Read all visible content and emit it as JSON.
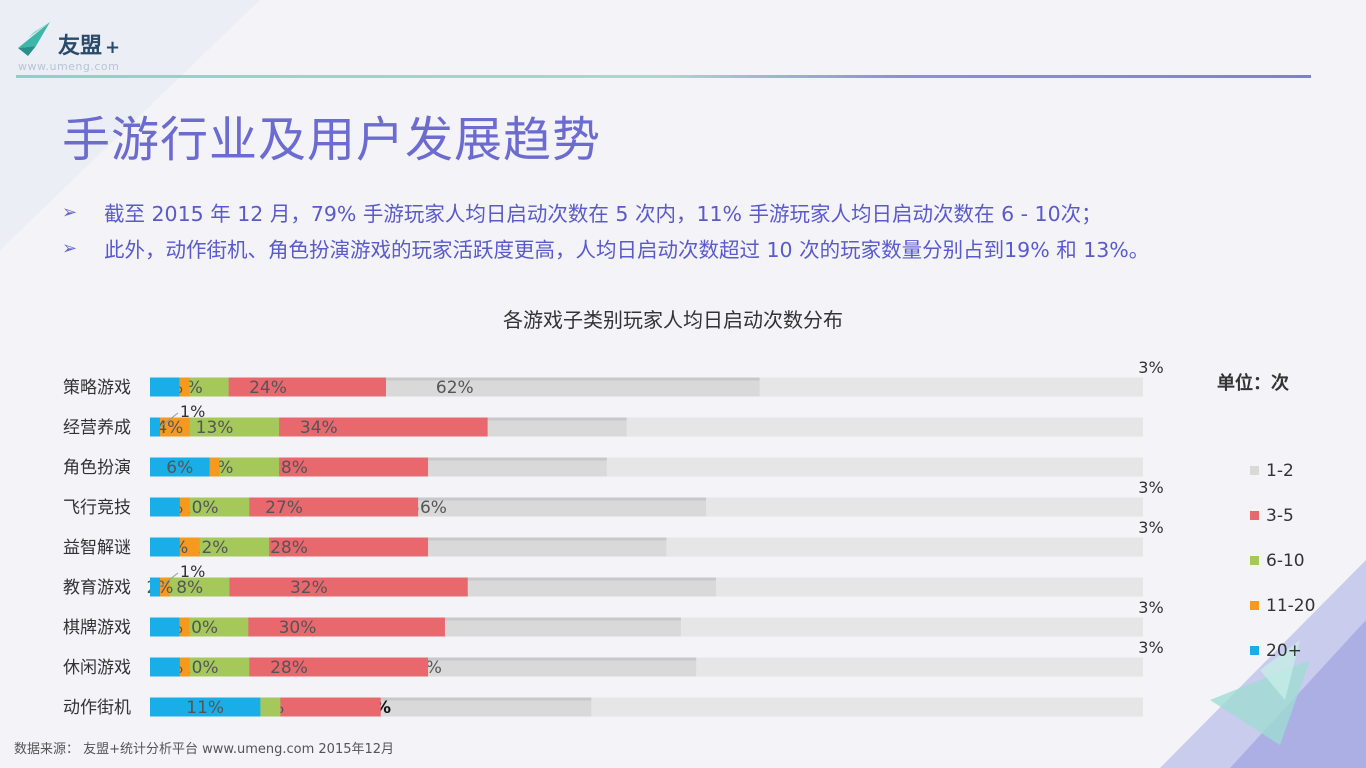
{
  "logo": {
    "brand": "友盟",
    "plus": "+",
    "url": "www.umeng.com"
  },
  "title": "手游行业及用户发展趋势",
  "bullets": [
    "截至 2015 年 12 月，79% 手游玩家人均日启动次数在 5 次内，11% 手游玩家人均日启动次数在 6 - 10次；",
    "此外，动作街机、角色扮演游戏的玩家活跃度更高，人均日启动次数超过 10 次的玩家数量分别占到19% 和 13%。"
  ],
  "unit_label": "单位：次",
  "source": "数据来源： 友盟+统计分析平台 www.umeng.com 2015年12月",
  "colors": {
    "1-2": "#d9d9d9",
    "3-5": "#e8686e",
    "6-10": "#a5c85a",
    "11-20": "#f59a1e",
    "20+": "#19aee8",
    "title": "#6b6bd0"
  },
  "chart_data": {
    "type": "bar",
    "orientation": "horizontal",
    "stacked": true,
    "title": "各游戏子类别玩家人均日启动次数分布",
    "categories": [
      "策略游戏",
      "经营养成",
      "角色扮演",
      "飞行竞技",
      "益智解谜",
      "教育游戏",
      "棋牌游戏",
      "休闲游戏",
      "动作街机"
    ],
    "series": [
      {
        "name": "1-2",
        "values": [
          62,
          48,
          46,
          56,
          52,
          57,
          54,
          55,
          44
        ]
      },
      {
        "name": "3-5",
        "values": [
          24,
          34,
          28,
          27,
          28,
          32,
          30,
          28,
          23
        ]
      },
      {
        "name": "6-10",
        "values": [
          8,
          13,
          13,
          10,
          12,
          8,
          10,
          10,
          13
        ]
      },
      {
        "name": "11-20",
        "values": [
          4,
          4,
          7,
          4,
          5,
          2,
          4,
          4,
          8
        ]
      },
      {
        "name": "20+",
        "values": [
          3,
          1,
          6,
          3,
          3,
          1,
          3,
          3,
          11
        ]
      }
    ],
    "value_suffix": "%",
    "legend_position": "right",
    "grid": false
  }
}
